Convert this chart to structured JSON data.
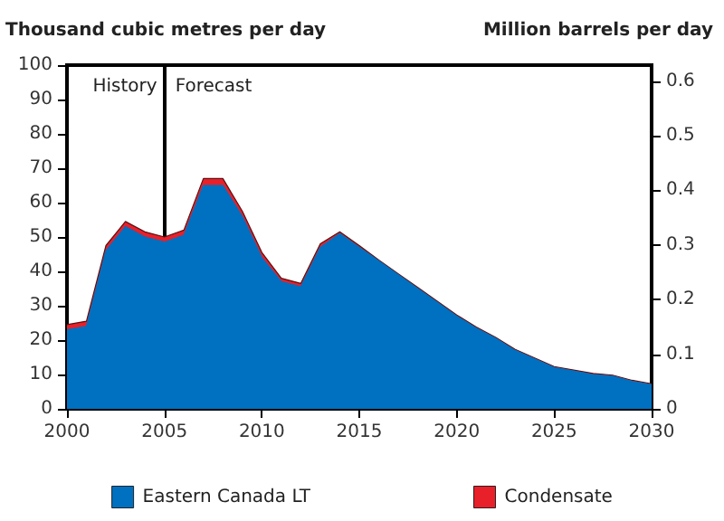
{
  "chart_data": {
    "type": "area",
    "stacked": true,
    "ylabel": "Thousand cubic metres per day",
    "y2label": "Million barrels per day",
    "x": [
      2000,
      2001,
      2002,
      2003,
      2004,
      2005,
      2006,
      2007,
      2008,
      2009,
      2010,
      2011,
      2012,
      2013,
      2014,
      2015,
      2016,
      2017,
      2018,
      2019,
      2020,
      2021,
      2022,
      2023,
      2024,
      2025,
      2026,
      2027,
      2028,
      2029,
      2030
    ],
    "series": [
      {
        "name": "Eastern Canada LT",
        "color": "#0070c0",
        "values": [
          23,
          24,
          46,
          53,
          50,
          48.5,
          50.5,
          65,
          65,
          56,
          44,
          37,
          35.5,
          47,
          51,
          47,
          43,
          39,
          35,
          31,
          27,
          23.5,
          20.5,
          17,
          14.5,
          12,
          11,
          10,
          9.5,
          8,
          7
        ]
      },
      {
        "name": "Condensate",
        "color": "#e8202a",
        "values": [
          1.5,
          1.5,
          1.5,
          1.5,
          1.5,
          1.5,
          1.5,
          2,
          2,
          1.5,
          1.5,
          1,
          1,
          1,
          0.5,
          0.5,
          0.3,
          0.3,
          0.3,
          0.3,
          0.3,
          0.3,
          0.3,
          0.3,
          0.3,
          0.3,
          0.3,
          0.3,
          0.3,
          0.3,
          0.3
        ]
      }
    ],
    "xlim": [
      2000,
      2030
    ],
    "xticks": [
      2000,
      2005,
      2010,
      2015,
      2020,
      2025,
      2030
    ],
    "ylim": [
      0,
      100
    ],
    "yticks": [
      0,
      10,
      20,
      30,
      40,
      50,
      60,
      70,
      80,
      90,
      100
    ],
    "y2lim": [
      0,
      0.629
    ],
    "y2ticks": [
      0,
      0.1,
      0.2,
      0.3,
      0.4,
      0.5,
      0.6
    ],
    "ref_lines": [
      {
        "axis": "x",
        "value": 2005,
        "color": "#000000"
      }
    ],
    "annotations": [
      "History",
      "Forecast"
    ],
    "legend": "bottom",
    "grid": false
  }
}
